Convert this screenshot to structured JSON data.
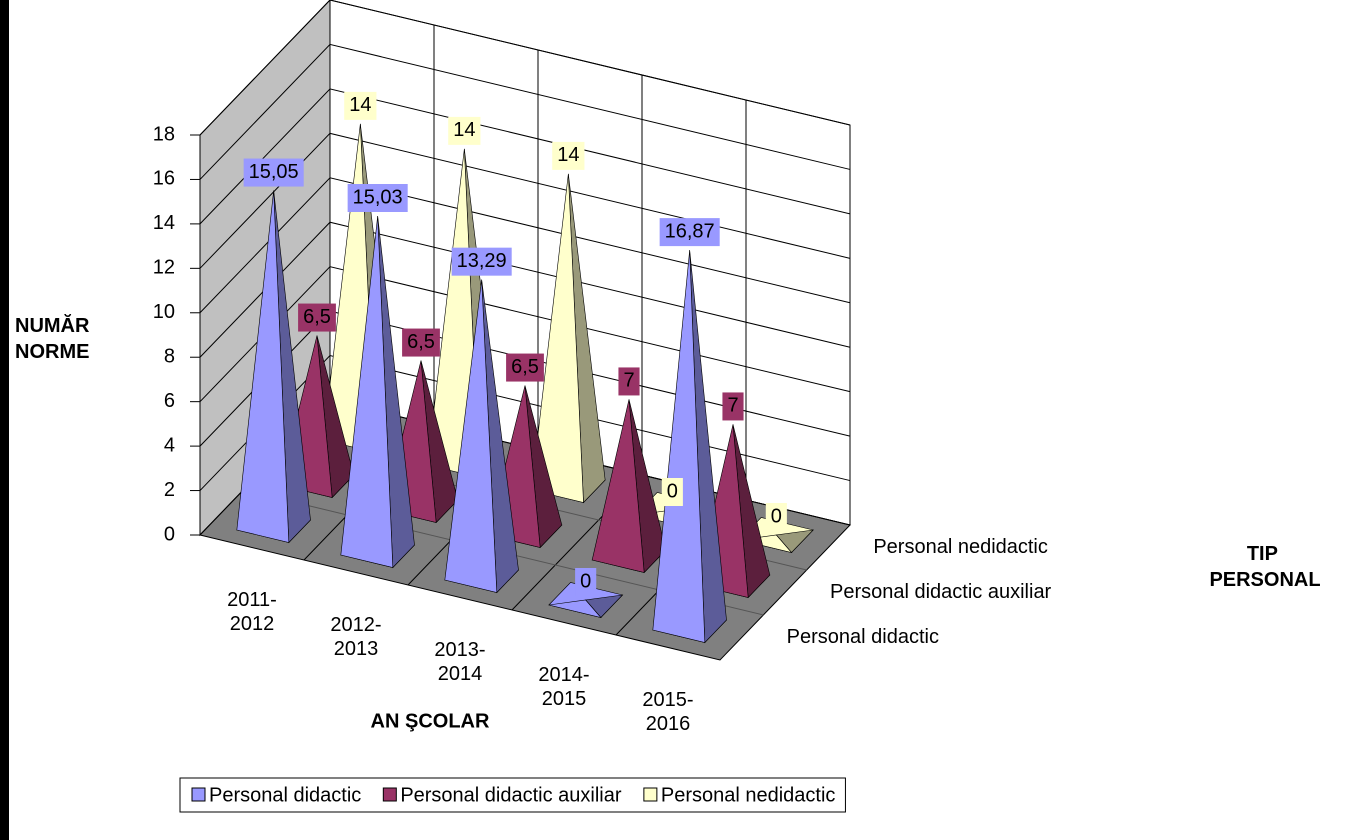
{
  "chart_data": {
    "type": "pyramid3d",
    "categories": [
      "2011-2012",
      "2012-2013",
      "2013-2014",
      "2014-2015",
      "2015-2016"
    ],
    "series": [
      {
        "name": "Personal didactic",
        "color": "#9999ff",
        "values": [
          15.05,
          15.03,
          13.29,
          0,
          16.87
        ],
        "value_labels": [
          "15,05",
          "15,03",
          "13,29",
          "0",
          "16,87"
        ]
      },
      {
        "name": "Personal didactic auxiliar",
        "color": "#993366",
        "values": [
          6.5,
          6.5,
          6.5,
          7,
          7
        ],
        "value_labels": [
          "6,5",
          "6,5",
          "6,5",
          "7",
          "7"
        ]
      },
      {
        "name": "Personal nedidactic",
        "color": "#ffffcc",
        "values": [
          14,
          14,
          14,
          0,
          0
        ]
      }
    ],
    "ylim": [
      0,
      18
    ],
    "yticks": [
      0,
      2,
      4,
      6,
      8,
      10,
      12,
      14,
      16,
      18
    ],
    "y_label": "NUMĂR NORME",
    "x_label": "AN ŞCOLAR",
    "z_label": "TIP PERSONAL",
    "grid": true,
    "legend": "bottom"
  }
}
